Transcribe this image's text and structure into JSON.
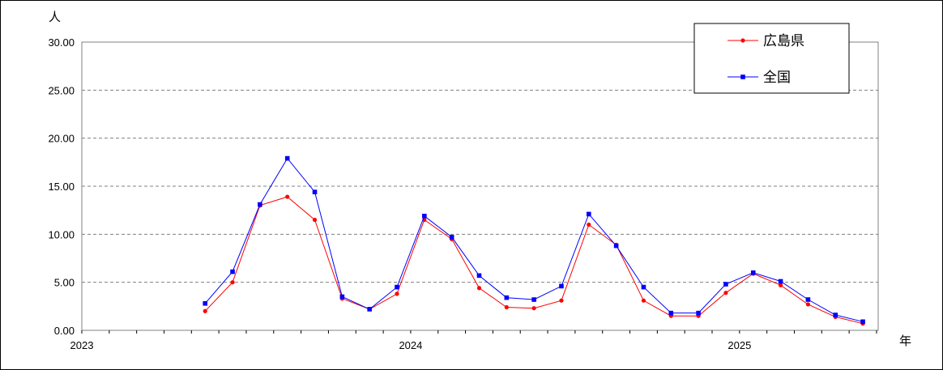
{
  "chart_data": {
    "type": "line",
    "y_unit": "人",
    "x_unit": "年",
    "ylim": [
      0,
      30
    ],
    "y_ticks": [
      "0.00",
      "5.00",
      "10.00",
      "15.00",
      "20.00",
      "25.00",
      "30.00"
    ],
    "grid": "horizontal-dashed",
    "legend_position": "top-right",
    "x_index_range": [
      0,
      29
    ],
    "year_labels": [
      {
        "label": "2023",
        "index": 0
      },
      {
        "label": "2024",
        "index": 12
      },
      {
        "label": "2025",
        "index": 24
      }
    ],
    "series": [
      {
        "name": "広島県",
        "color": "#ff0000",
        "marker": "circle",
        "start_index": 4,
        "values": [
          2.0,
          5.0,
          13.0,
          13.9,
          11.5,
          3.3,
          2.2,
          3.8,
          11.5,
          9.5,
          4.4,
          2.4,
          2.3,
          3.1,
          11.0,
          8.9,
          3.1,
          1.5,
          1.5,
          3.9,
          5.9,
          4.7,
          2.7,
          1.4,
          0.7
        ]
      },
      {
        "name": "全国",
        "color": "#0000ff",
        "marker": "square",
        "start_index": 4,
        "values": [
          2.8,
          6.1,
          13.1,
          17.9,
          14.4,
          3.5,
          2.2,
          4.5,
          11.9,
          9.7,
          5.7,
          3.4,
          3.2,
          4.6,
          12.1,
          8.8,
          4.5,
          1.8,
          1.8,
          4.8,
          6.0,
          5.1,
          3.2,
          1.6,
          0.9
        ]
      }
    ]
  }
}
